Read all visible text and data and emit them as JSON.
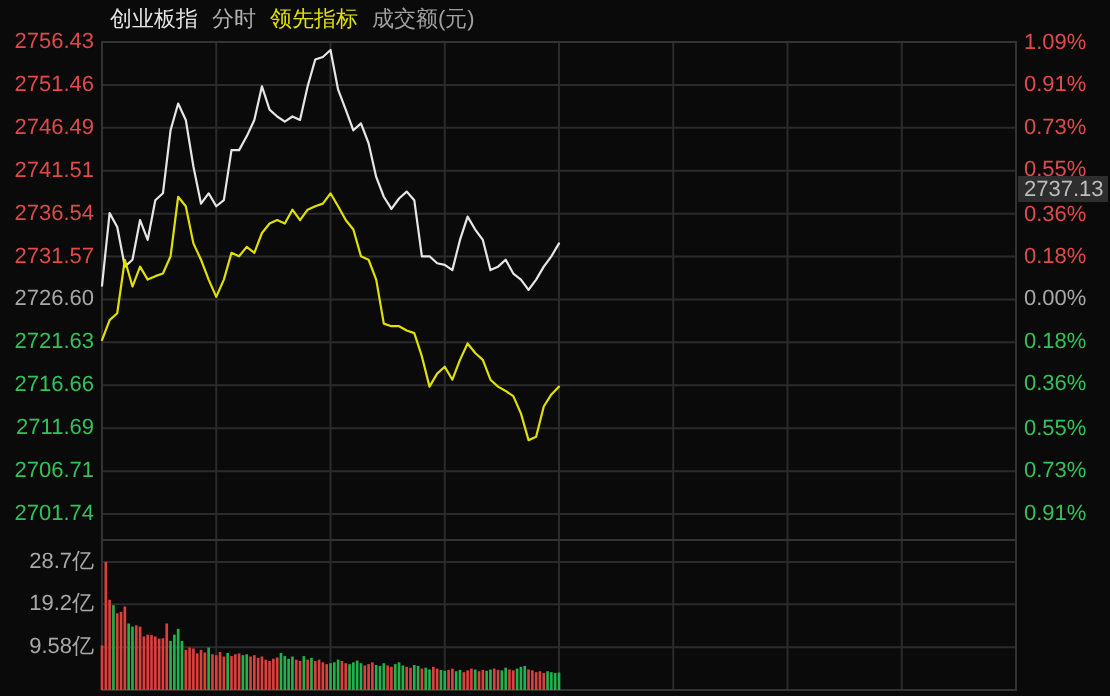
{
  "chart_data": [
    {
      "type": "line",
      "title": "分时",
      "subtitle": "成交额(元)",
      "grid": true,
      "tick_labels": "y",
      "categories": [
        null,
        null,
        null,
        null,
        null,
        null,
        null,
        null,
        null,
        null,
        null,
        null,
        null,
        null,
        null,
        null,
        null,
        null,
        null,
        null,
        null,
        null,
        null,
        null,
        null,
        null,
        null,
        null,
        null,
        null,
        null,
        null,
        null,
        null,
        null,
        null,
        null,
        null,
        null,
        null,
        null,
        null,
        null,
        null,
        null,
        null,
        null,
        null,
        null,
        null,
        null,
        null,
        null,
        null,
        null,
        null,
        null,
        null,
        null,
        null,
        null,
        null,
        null,
        null,
        null,
        null,
        null,
        null,
        null,
        null,
        null,
        null,
        null,
        null,
        null,
        null,
        null,
        null,
        null,
        null,
        null,
        null,
        null,
        null,
        null,
        null,
        null,
        null,
        null,
        null,
        null,
        null,
        null,
        null,
        null,
        null,
        null,
        null,
        null,
        null,
        null,
        null,
        null,
        null,
        null,
        null,
        null,
        null,
        null,
        null,
        null,
        null,
        null,
        null,
        null,
        null,
        null,
        null,
        null,
        null,
        null
      ],
      "ylim": [
        2698.73,
        2756.43
      ],
      "yticks": [
        2756.43,
        2751.46,
        2746.49,
        2741.51,
        2736.54,
        2731.57,
        {
          "value": 2726.6,
          "label": "2726.60"
        },
        2721.63,
        2716.66,
        2711.69,
        2706.71,
        2701.74
      ],
      "y2lim": [
        -1.022,
        1.094
      ],
      "y2ticks": [
        {
          "value": 1.09,
          "label": "1.09%"
        },
        {
          "value": 0.91,
          "label": "0.91%"
        },
        {
          "value": 0.73,
          "label": "0.73%"
        },
        {
          "value": 0.55,
          "label": "0.55%"
        },
        {
          "value": 0.36,
          "label": "0.36%"
        },
        {
          "value": 0.18,
          "label": "0.18%"
        },
        {
          "value": 0,
          "label": "0.00%"
        },
        {
          "value": -0.18,
          "label": "0.18%"
        },
        {
          "value": -0.36,
          "label": "0.36%"
        },
        {
          "value": -0.55,
          "label": "0.55%"
        },
        {
          "value": -0.73,
          "label": "0.73%"
        },
        {
          "value": -0.91,
          "label": "0.91%"
        }
      ],
      "annotations": [
        "2737.13"
      ],
      "series": [
        {
          "name": "创业板指",
          "color": "#e6e6e6",
          "values": [
            2728.2,
            2736.6,
            2735.0,
            2730.4,
            2731.2,
            2735.8,
            2733.5,
            2738.1,
            2738.9,
            2746.2,
            2749.3,
            2747.4,
            2742.0,
            2737.7,
            2738.9,
            2737.4,
            2738.1,
            2743.9,
            2743.9,
            2745.5,
            2747.4,
            2751.3,
            2748.6,
            2747.8,
            2747.2,
            2747.8,
            2747.4,
            2751.3,
            2754.4,
            2754.7,
            2755.5,
            2750.9,
            2748.6,
            2746.2,
            2747.0,
            2744.7,
            2740.8,
            2738.5,
            2737.1,
            2738.3,
            2739.1,
            2738.1,
            2731.6,
            2731.6,
            2730.8,
            2730.6,
            2730.0,
            2733.5,
            2736.2,
            2734.7,
            2733.5,
            2730.0,
            2730.4,
            2731.2,
            2729.6,
            2728.9,
            2727.7,
            2728.9,
            2730.4,
            2731.6,
            2733.1,
            null,
            null,
            null,
            null,
            null,
            null,
            null,
            null,
            null,
            null,
            null,
            null,
            null,
            null,
            null,
            null,
            null,
            null,
            null,
            null,
            null,
            null,
            null,
            null,
            null,
            null,
            null,
            null,
            null,
            null,
            null,
            null,
            null,
            null,
            null,
            null,
            null,
            null,
            null,
            null,
            null,
            null,
            null,
            null,
            null,
            null,
            null,
            null,
            null,
            null,
            null,
            null,
            null,
            null,
            null,
            null,
            null,
            null,
            null,
            null
          ]
        },
        {
          "name": "领先指标",
          "color": "#e0e000",
          "values": [
            2721.9,
            2724.2,
            2725.0,
            2731.2,
            2728.1,
            2730.4,
            2728.9,
            2729.3,
            2729.6,
            2731.6,
            2738.5,
            2737.4,
            2733.1,
            2731.2,
            2728.9,
            2726.9,
            2728.9,
            2732.0,
            2731.6,
            2732.7,
            2732.0,
            2734.3,
            2735.4,
            2735.8,
            2735.4,
            2737.0,
            2735.8,
            2737.0,
            2737.4,
            2737.7,
            2738.9,
            2737.4,
            2735.8,
            2734.7,
            2731.6,
            2731.2,
            2728.9,
            2723.8,
            2723.5,
            2723.5,
            2723.0,
            2722.7,
            2720.0,
            2716.5,
            2718.0,
            2718.8,
            2717.3,
            2719.6,
            2721.5,
            2720.4,
            2719.6,
            2717.3,
            2716.5,
            2716.0,
            2715.4,
            2713.4,
            2710.3,
            2710.7,
            2714.2,
            2715.6,
            2716.5,
            null,
            null,
            null,
            null,
            null,
            null,
            null,
            null,
            null,
            null,
            null,
            null,
            null,
            null,
            null,
            null,
            null,
            null,
            null,
            null,
            null,
            null,
            null,
            null,
            null,
            null,
            null,
            null,
            null,
            null,
            null,
            null,
            null,
            null,
            null,
            null,
            null,
            null,
            null,
            null,
            null,
            null,
            null,
            null,
            null,
            null,
            null,
            null,
            null,
            null,
            null,
            null,
            null,
            null,
            null,
            null,
            null,
            null,
            null,
            null
          ]
        }
      ]
    },
    {
      "type": "bar",
      "grid": true,
      "tick_labels": "y",
      "categories": [
        null,
        null,
        null,
        null,
        null,
        null,
        null,
        null,
        null,
        null,
        null,
        null,
        null,
        null,
        null,
        null,
        null,
        null,
        null,
        null,
        null,
        null,
        null,
        null,
        null,
        null,
        null,
        null,
        null,
        null,
        null,
        null,
        null,
        null,
        null,
        null,
        null,
        null,
        null,
        null,
        null,
        null,
        null,
        null,
        null,
        null,
        null,
        null,
        null,
        null,
        null,
        null,
        null,
        null,
        null,
        null,
        null,
        null,
        null,
        null,
        null,
        null,
        null,
        null,
        null,
        null,
        null,
        null,
        null,
        null,
        null,
        null,
        null,
        null,
        null,
        null,
        null,
        null,
        null,
        null,
        null,
        null,
        null,
        null,
        null,
        null,
        null,
        null,
        null,
        null,
        null,
        null,
        null,
        null,
        null,
        null,
        null,
        null,
        null,
        null,
        null,
        null,
        null,
        null,
        null,
        null,
        null,
        null,
        null,
        null,
        null,
        null,
        null,
        null,
        null,
        null,
        null,
        null,
        null,
        null,
        null,
        null,
        null,
        null,
        null,
        null,
        null,
        null,
        null,
        null,
        null,
        null,
        null,
        null,
        null,
        null,
        null,
        null,
        null,
        null,
        null,
        null,
        null,
        null,
        null,
        null,
        null,
        null,
        null,
        null,
        null,
        null,
        null,
        null,
        null,
        null,
        null,
        null,
        null,
        null,
        null,
        null,
        null,
        null,
        null,
        null,
        null,
        null,
        null,
        null,
        null,
        null,
        null,
        null,
        null,
        null,
        null,
        null,
        null,
        null,
        null,
        null,
        null,
        null,
        null,
        null,
        null,
        null,
        null,
        null,
        null,
        null,
        null,
        null,
        null,
        null,
        null,
        null,
        null,
        null,
        null,
        null,
        null,
        null,
        null,
        null,
        null,
        null,
        null,
        null,
        null,
        null,
        null,
        null,
        null,
        null,
        null,
        null,
        null,
        null,
        null,
        null,
        null,
        null,
        null,
        null,
        null,
        null,
        null,
        null,
        null,
        null,
        null,
        null,
        null,
        null,
        null,
        null,
        null,
        null,
        null
      ],
      "ylim": [
        0,
        33.6
      ],
      "yticks": [
        {
          "value": 28.7,
          "label": "28.7亿"
        },
        {
          "value": 19.2,
          "label": "19.2亿"
        },
        {
          "value": 9.58,
          "label": "9.58亿"
        }
      ],
      "values": [
        10.0,
        28.7,
        20.2,
        19.0,
        17.2,
        17.5,
        18.7,
        14.9,
        14.2,
        14.5,
        14.2,
        12.0,
        12.4,
        12.3,
        12.0,
        11.5,
        11.6,
        14.9,
        11.0,
        12.4,
        13.7,
        11.0,
        9.0,
        9.5,
        9.3,
        8.2,
        9.0,
        8.4,
        9.5,
        8.0,
        7.8,
        8.5,
        7.5,
        8.3,
        7.6,
        8.0,
        8.2,
        7.8,
        8.0,
        7.5,
        7.8,
        7.2,
        7.5,
        6.8,
        6.5,
        7.0,
        7.3,
        8.3,
        7.6,
        7.0,
        7.5,
        6.8,
        6.5,
        7.6,
        6.8,
        7.2,
        6.5,
        6.8,
        6.2,
        5.8,
        6.0,
        6.2,
        6.8,
        6.5,
        6.0,
        5.8,
        6.2,
        6.6,
        6.0,
        5.5,
        5.8,
        6.2,
        5.6,
        5.4,
        6.0,
        5.5,
        5.2,
        5.8,
        6.2,
        5.5,
        5.2,
        5.0,
        5.6,
        5.4,
        4.8,
        5.0,
        4.6,
        5.2,
        4.8,
        4.5,
        4.3,
        4.5,
        4.8,
        4.2,
        4.5,
        4.0,
        4.4,
        4.8,
        4.6,
        4.2,
        4.5,
        4.3,
        4.6,
        4.8,
        4.5,
        4.4,
        5.0,
        4.6,
        4.4,
        4.8,
        5.2,
        5.4,
        4.6,
        4.4,
        4.0,
        4.2,
        3.8,
        4.2,
        4.0,
        3.8,
        3.9,
        null,
        null,
        null,
        null,
        null,
        null,
        null,
        null,
        null,
        null,
        null,
        null,
        null,
        null,
        null,
        null,
        null,
        null,
        null,
        null,
        null,
        null,
        null,
        null,
        null,
        null,
        null,
        null,
        null,
        null,
        null,
        null,
        null,
        null,
        null,
        null,
        null,
        null,
        null,
        null,
        null,
        null,
        null,
        null,
        null,
        null,
        null,
        null,
        null,
        null,
        null,
        null,
        null,
        null,
        null,
        null,
        null,
        null,
        null,
        null,
        null,
        null,
        null,
        null,
        null,
        null,
        null,
        null,
        null,
        null,
        null,
        null,
        null,
        null,
        null,
        null,
        null,
        null,
        null,
        null,
        null,
        null,
        null,
        null,
        null,
        null,
        null,
        null,
        null,
        null,
        null,
        null,
        null,
        null,
        null,
        null,
        null,
        null,
        null,
        null,
        null,
        null,
        null,
        null,
        null,
        null,
        null,
        null,
        null,
        null,
        null,
        null,
        null,
        null,
        null,
        null,
        null,
        null,
        null,
        null
      ],
      "colors": [
        "#d9403f",
        "#d9403f",
        "#d9403f",
        "#22b14c",
        "#d9403f",
        "#d9403f",
        "#d9403f",
        "#22b14c",
        "#22b14c",
        "#d9403f",
        "#d9403f",
        "#d9403f",
        "#d9403f",
        "#d9403f",
        "#d9403f",
        "#d9403f",
        "#d9403f",
        "#d9403f",
        "#22b14c",
        "#22b14c",
        "#22b14c",
        "#22b14c",
        "#d9403f",
        "#d9403f",
        "#d9403f",
        "#d9403f",
        "#d9403f",
        "#d9403f",
        "#22b14c",
        "#d9403f",
        "#d9403f",
        "#d9403f",
        "#d9403f",
        "#22b14c",
        "#d9403f",
        "#d9403f",
        "#d9403f",
        "#22b14c",
        "#22b14c",
        "#d9403f",
        "#d9403f",
        "#d9403f",
        "#d9403f",
        "#d9403f",
        "#d9403f",
        "#d9403f",
        "#d9403f",
        "#22b14c",
        "#22b14c",
        "#22b14c",
        "#22b14c",
        "#d9403f",
        "#d9403f",
        "#22b14c",
        "#d9403f",
        "#22b14c",
        "#d9403f",
        "#d9403f",
        "#d9403f",
        "#d9403f",
        "#22b14c",
        "#22b14c",
        "#22b14c",
        "#d9403f",
        "#d9403f",
        "#22b14c",
        "#22b14c",
        "#22b14c",
        "#22b14c",
        "#d9403f",
        "#d9403f",
        "#d9403f",
        "#22b14c",
        "#22b14c",
        "#22b14c",
        "#d9403f",
        "#d9403f",
        "#22b14c",
        "#22b14c",
        "#22b14c",
        "#d9403f",
        "#d9403f",
        "#22b14c",
        "#22b14c",
        "#d9403f",
        "#22b14c",
        "#22b14c",
        "#d9403f",
        "#d9403f",
        "#22b14c",
        "#22b14c",
        "#d9403f",
        "#d9403f",
        "#22b14c",
        "#22b14c",
        "#d9403f",
        "#d9403f",
        "#d9403f",
        "#22b14c",
        "#d9403f",
        "#d9403f",
        "#22b14c",
        "#22b14c",
        "#d9403f",
        "#d9403f",
        "#22b14c",
        "#22b14c",
        "#d9403f",
        "#d9403f",
        "#22b14c",
        "#22b14c",
        "#22b14c",
        "#d9403f",
        "#d9403f",
        "#d9403f",
        "#d9403f",
        "#d9403f",
        "#22b14c",
        "#22b14c",
        "#22b14c",
        "#22b14c",
        null,
        null,
        null,
        null,
        null,
        null,
        null,
        null,
        null,
        null,
        null,
        null,
        null,
        null,
        null,
        null,
        null,
        null,
        null,
        null,
        null,
        null,
        null,
        null,
        null,
        null,
        null,
        null,
        null,
        null,
        null,
        null,
        null,
        null,
        null,
        null,
        null,
        null,
        null,
        null,
        null,
        null,
        null,
        null,
        null,
        null,
        null,
        null,
        null,
        null,
        null,
        null,
        null,
        null,
        null,
        null,
        null,
        null,
        null,
        null,
        null,
        null,
        null,
        null,
        null,
        null,
        null,
        null,
        null,
        null,
        null,
        null,
        null,
        null,
        null,
        null,
        null,
        null,
        null,
        null,
        null,
        null,
        null,
        null,
        null,
        null,
        null,
        null,
        null,
        null,
        null,
        null,
        null,
        null,
        null,
        null,
        null,
        null,
        null,
        null,
        null,
        null,
        null,
        null,
        null,
        null,
        null,
        null,
        null,
        null,
        null,
        null,
        null,
        null,
        null,
        null,
        null,
        null,
        null,
        null
      ]
    }
  ]
}
